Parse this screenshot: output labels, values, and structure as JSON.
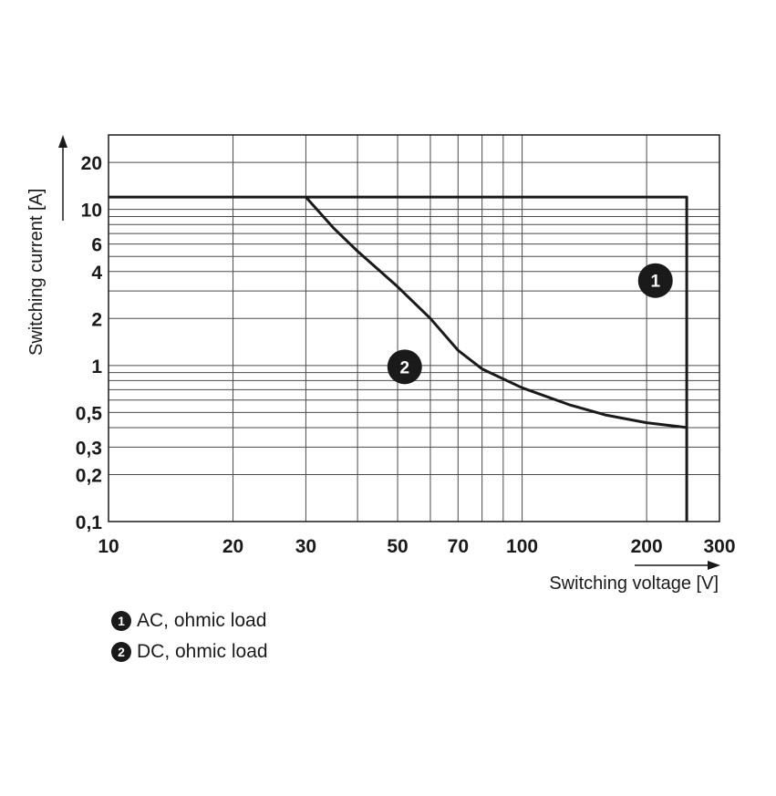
{
  "chart_data": {
    "type": "line",
    "xlabel": "Switching voltage [V]",
    "ylabel": "Switching current [A]",
    "x_scale": "log",
    "y_scale": "log",
    "xlim": [
      10,
      300
    ],
    "ylim": [
      0.1,
      30
    ],
    "grid": true,
    "x_ticks": [
      {
        "value": 10,
        "label": "10"
      },
      {
        "value": 20,
        "label": "20"
      },
      {
        "value": 30,
        "label": "30"
      },
      {
        "value": 50,
        "label": "50"
      },
      {
        "value": 70,
        "label": "70"
      },
      {
        "value": 100,
        "label": "100"
      },
      {
        "value": 200,
        "label": "200"
      },
      {
        "value": 300,
        "label": "300"
      }
    ],
    "y_ticks": [
      {
        "value": 0.1,
        "label": "0,1"
      },
      {
        "value": 0.2,
        "label": "0,2"
      },
      {
        "value": 0.3,
        "label": "0,3"
      },
      {
        "value": 0.5,
        "label": "0,5"
      },
      {
        "value": 1,
        "label": "1"
      },
      {
        "value": 2,
        "label": "2"
      },
      {
        "value": 4,
        "label": "4"
      },
      {
        "value": 6,
        "label": "6"
      },
      {
        "value": 10,
        "label": "10"
      },
      {
        "value": 20,
        "label": "20"
      }
    ],
    "x_grid": [
      10,
      20,
      30,
      40,
      50,
      60,
      70,
      80,
      90,
      100,
      200,
      300
    ],
    "y_grid": [
      0.1,
      0.2,
      0.3,
      0.4,
      0.5,
      0.6,
      0.7,
      0.8,
      0.9,
      1,
      2,
      3,
      4,
      5,
      6,
      7,
      8,
      9,
      10,
      20,
      30
    ],
    "series": [
      {
        "marker": "1",
        "name": "AC, ohmic load",
        "marker_at": [
          210,
          3.5
        ],
        "points": [
          [
            10,
            12
          ],
          [
            250,
            12
          ],
          [
            250,
            0.1
          ]
        ]
      },
      {
        "marker": "2",
        "name": "DC, ohmic load",
        "marker_at": [
          52,
          0.98
        ],
        "points": [
          [
            30,
            12
          ],
          [
            35,
            7.6
          ],
          [
            40,
            5.4
          ],
          [
            50,
            3.2
          ],
          [
            60,
            2.0
          ],
          [
            70,
            1.25
          ],
          [
            80,
            0.95
          ],
          [
            100,
            0.72
          ],
          [
            130,
            0.56
          ],
          [
            160,
            0.48
          ],
          [
            200,
            0.43
          ],
          [
            250,
            0.4
          ]
        ]
      }
    ]
  }
}
